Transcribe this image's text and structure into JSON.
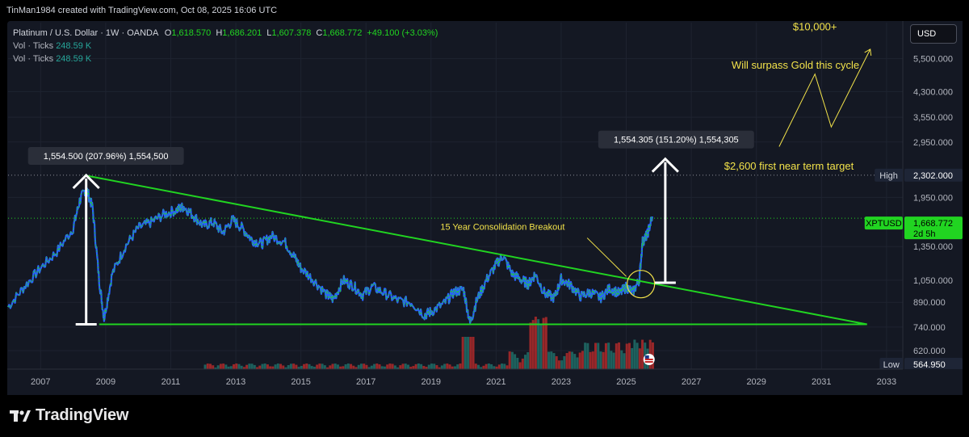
{
  "header": {
    "credit": "TinMan1984 created with TradingView.com, Oct 08, 2025 16:06 UTC"
  },
  "legend": {
    "symbol": "Platinum / U.S. Dollar · 1W · OANDA",
    "open_label": "O",
    "open": "1,618.570",
    "high_label": "H",
    "high": "1,686.201",
    "low_label": "L",
    "low": "1,607.378",
    "close_label": "C",
    "close": "1,668.772",
    "change": "+49.100 (+3.03%)",
    "vol_rows": [
      {
        "label": "Vol · Ticks",
        "value": "248.59 K"
      },
      {
        "label": "Vol · Ticks",
        "value": "248.59 K"
      }
    ]
  },
  "currency_button": "USD",
  "brand": "TradingView",
  "colors": {
    "background": "#141823",
    "candles_blue": "#2962ff",
    "candles_green": "#21d421",
    "trendline": "#21d421",
    "annotation_yellow": "#f2e24a",
    "volume_red": "#b02a2a",
    "volume_teal": "#1f6f68"
  },
  "chart_data": {
    "type": "line",
    "title": "",
    "xlabel": "",
    "ylabel": "",
    "y_scale": "log",
    "ylim": [
      540,
      7200
    ],
    "xlim": [
      2006.0,
      2033.5
    ],
    "x_ticks": [
      "2007",
      "2009",
      "2011",
      "2013",
      "2015",
      "2017",
      "2019",
      "2021",
      "2023",
      "2025",
      "2027",
      "2029",
      "2031",
      "2033"
    ],
    "y_ticks": [
      {
        "label": "5,500.000",
        "v": 5500
      },
      {
        "label": "4,300.000",
        "v": 4300
      },
      {
        "label": "3,550.000",
        "v": 3550
      },
      {
        "label": "2,950.000",
        "v": 2950
      },
      {
        "label": "1,950.000",
        "v": 1950
      },
      {
        "label": "1,350.000",
        "v": 1350
      },
      {
        "label": "1,050.000",
        "v": 1050
      },
      {
        "label": "890.000",
        "v": 890
      },
      {
        "label": "740.000",
        "v": 740
      },
      {
        "label": "620.000",
        "v": 620
      }
    ],
    "price_series": {
      "name": "XPTUSD",
      "x": [
        2006.0,
        2006.5,
        2007.0,
        2007.5,
        2008.0,
        2008.2,
        2008.4,
        2008.6,
        2008.8,
        2008.95,
        2009.2,
        2009.6,
        2010.0,
        2010.4,
        2010.8,
        2011.2,
        2011.4,
        2011.7,
        2012.0,
        2012.3,
        2012.6,
        2012.9,
        2013.2,
        2013.5,
        2013.8,
        2014.1,
        2014.5,
        2014.8,
        2015.0,
        2015.4,
        2015.8,
        2016.0,
        2016.3,
        2016.6,
        2016.9,
        2017.2,
        2017.6,
        2018.0,
        2018.4,
        2018.8,
        2019.0,
        2019.4,
        2019.7,
        2020.0,
        2020.2,
        2020.4,
        2020.7,
        2021.0,
        2021.2,
        2021.5,
        2021.8,
        2022.0,
        2022.2,
        2022.5,
        2022.8,
        2023.0,
        2023.3,
        2023.6,
        2023.9,
        2024.2,
        2024.5,
        2024.8,
        2025.0,
        2025.2,
        2025.4,
        2025.5,
        2025.65,
        2025.8
      ],
      "y": [
        860,
        1000,
        1150,
        1300,
        1550,
        1900,
        2100,
        1800,
        1050,
        790,
        1100,
        1350,
        1550,
        1620,
        1720,
        1780,
        1820,
        1700,
        1580,
        1620,
        1500,
        1650,
        1550,
        1420,
        1380,
        1460,
        1400,
        1250,
        1150,
        1050,
        940,
        910,
        1050,
        1010,
        940,
        1000,
        950,
        900,
        890,
        810,
        830,
        880,
        960,
        980,
        760,
        900,
        1050,
        1180,
        1260,
        1100,
        1050,
        1020,
        1100,
        950,
        920,
        1060,
        1010,
        930,
        960,
        920,
        990,
        950,
        1000,
        960,
        1050,
        1400,
        1480,
        1690
      ]
    },
    "volume_note": "volume histogram (Ticks) at bottom, spike around 2020 and rising 2022-2025",
    "lines": [
      {
        "name": "descending-trendline",
        "from": [
          2008.35,
          2300
        ],
        "to": [
          2032.4,
          755
        ]
      },
      {
        "name": "support-line",
        "from": [
          2008.8,
          755
        ],
        "to": [
          2032.4,
          755
        ]
      }
    ],
    "measure_arrows": [
      {
        "label": "1,554.500 (207.96%) 1,554,500",
        "x": 2008.4,
        "from": 755,
        "to": 2300
      },
      {
        "label": "1,554.305 (151.20%) 1,554,305",
        "x": 2026.2,
        "from": 1030,
        "to": 2600
      }
    ],
    "annotations": [
      {
        "text": "15 Year Consolidation Breakout",
        "x": 2021.2,
        "y": 1530
      },
      {
        "text": "Will surpass Gold this cycle",
        "x": 2030.2,
        "y": 5100
      },
      {
        "text": "$2,600 first near term target",
        "x": 2030.0,
        "y": 2400
      },
      {
        "text": "$10,000+",
        "x": 2030.8,
        "y": 6800
      }
    ],
    "projection_path": {
      "x": [
        2029.7,
        2030.8,
        2031.3,
        2032.5
      ],
      "y": [
        2850,
        4900,
        3300,
        5900
      ]
    },
    "price_labels": [
      {
        "tag": "High",
        "value": "2,302.000",
        "v": 2302
      },
      {
        "tag": "XPTUSD",
        "value": "1,668.772",
        "sub": "2d 5h",
        "v": 1668.772
      },
      {
        "tag": "Low",
        "value": "564.950",
        "v": 564.95
      }
    ]
  }
}
